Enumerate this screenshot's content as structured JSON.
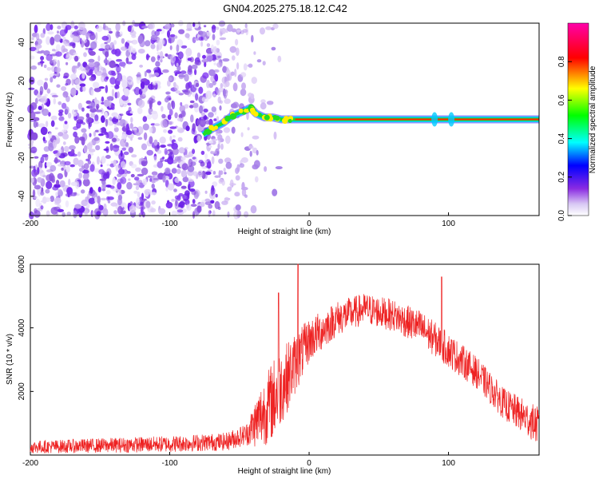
{
  "title": "GN04.2025.275.18.12.C42",
  "chart_data": [
    {
      "type": "heatmap",
      "name": "spectrogram",
      "xlabel": "Height of straight line (km)",
      "ylabel": "Frequency (Hz)",
      "xlim": [
        -200,
        165
      ],
      "ylim": [
        -50,
        50
      ],
      "xticks": [
        -200,
        -100,
        0,
        100
      ],
      "yticks": [
        -40,
        -20,
        0,
        20,
        40
      ],
      "signal_trace": {
        "description": "dominant frequency ridge",
        "points": [
          [
            -76,
            -8
          ],
          [
            -70,
            -5
          ],
          [
            -62,
            -2
          ],
          [
            -55,
            2
          ],
          [
            -48,
            4
          ],
          [
            -42,
            6
          ],
          [
            -38,
            3
          ],
          [
            -32,
            1
          ],
          [
            -26,
            1
          ],
          [
            -20,
            0
          ],
          [
            -10,
            0
          ],
          [
            0,
            0
          ],
          [
            90,
            0
          ],
          [
            102,
            0
          ],
          [
            165,
            0
          ]
        ]
      },
      "noise_region_x": [
        -200,
        -45
      ],
      "colorbar": {
        "label": "Normalized spectral amplitude",
        "range": [
          0,
          1
        ],
        "ticks": [
          0.0,
          0.2,
          0.4,
          0.6,
          0.8
        ],
        "colors": [
          "#ffffff",
          "#8a2be2",
          "#0000ff",
          "#00ffff",
          "#00ff00",
          "#ffff00",
          "#ff0000",
          "#ff00ff"
        ]
      }
    },
    {
      "type": "line",
      "name": "snr",
      "xlabel": "Height of straight line (km)",
      "ylabel": "SNR (10 * v/v)",
      "xlim": [
        -200,
        165
      ],
      "ylim": [
        0,
        6000
      ],
      "xticks": [
        -200,
        -100,
        0,
        100
      ],
      "yticks": [
        2000,
        4000,
        6000
      ],
      "color": "#ee2222",
      "envelope": {
        "x": [
          -200,
          -150,
          -100,
          -60,
          -45,
          -35,
          -25,
          -15,
          0,
          20,
          40,
          60,
          80,
          100,
          120,
          140,
          165
        ],
        "mean": [
          250,
          300,
          350,
          420,
          650,
          1200,
          1800,
          2500,
          3600,
          4300,
          4600,
          4400,
          4000,
          3300,
          2600,
          1600,
          900
        ],
        "amp": [
          200,
          230,
          260,
          280,
          350,
          1000,
          1300,
          1100,
          700,
          550,
          500,
          500,
          550,
          550,
          500,
          500,
          600
        ]
      },
      "spikes": [
        [
          -22,
          5100
        ],
        [
          -8,
          6100
        ],
        [
          95,
          5600
        ]
      ]
    }
  ]
}
